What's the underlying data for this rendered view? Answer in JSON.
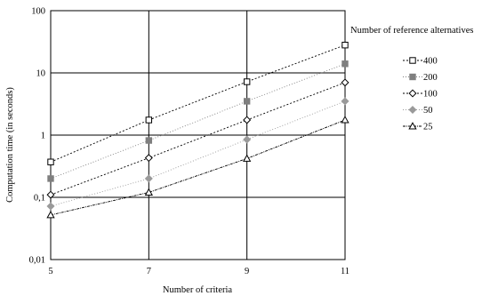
{
  "chart_data": {
    "type": "line",
    "title": "",
    "xlabel": "Number of criteria",
    "ylabel": "Computation time (in seconds)",
    "x": [
      5,
      7,
      9,
      11
    ],
    "x_ticks": [
      "5",
      "7",
      "9",
      "11"
    ],
    "xlim": [
      5,
      11
    ],
    "y_scale": "log",
    "ylim": [
      0.01,
      100
    ],
    "y_ticks": [
      {
        "value": 0.01,
        "label": "0,01"
      },
      {
        "value": 0.1,
        "label": "0,1"
      },
      {
        "value": 1,
        "label": "1"
      },
      {
        "value": 10,
        "label": "10"
      },
      {
        "value": 100,
        "label": "100"
      }
    ],
    "grid": true,
    "legend_title": "Number of reference alternatives",
    "legend_position": "right",
    "series": [
      {
        "name": "400",
        "marker": "square-open",
        "color": "#000000",
        "dash": "2,2",
        "values": [
          0.37,
          1.75,
          7.2,
          28
        ]
      },
      {
        "name": "200",
        "marker": "square-filled",
        "color": "#7f7f7f",
        "dash": "1,2",
        "values": [
          0.2,
          0.82,
          3.5,
          14
        ]
      },
      {
        "name": "100",
        "marker": "diamond-open",
        "color": "#000000",
        "dash": "2,2",
        "values": [
          0.11,
          0.43,
          1.75,
          7
        ]
      },
      {
        "name": "50",
        "marker": "diamond-filled",
        "color": "#9a9a9a",
        "dash": "1,2",
        "values": [
          0.072,
          0.2,
          0.85,
          3.5
        ]
      },
      {
        "name": "25",
        "marker": "triangle-open",
        "color": "#000000",
        "dash": "3,1,1,1",
        "values": [
          0.052,
          0.12,
          0.42,
          1.75
        ]
      }
    ]
  }
}
